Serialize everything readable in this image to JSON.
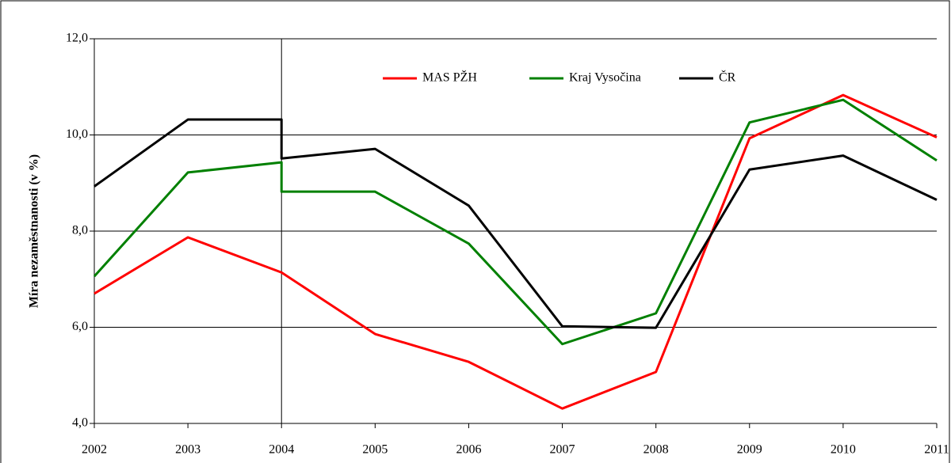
{
  "chart_data": {
    "type": "line",
    "y_label": "Míra nezaměstnanosti (v %)",
    "x": [
      2002,
      2003,
      2004,
      2004,
      2005,
      2006,
      2007,
      2008,
      2009,
      2010,
      2011
    ],
    "series": [
      {
        "name": "MAS PŽH",
        "color": "#ff0000",
        "values": [
          6.7,
          7.87,
          7.14,
          7.14,
          5.86,
          5.28,
          4.31,
          5.07,
          9.93,
          10.83,
          9.95
        ]
      },
      {
        "name": "Kraj Vysočina",
        "color": "#008000",
        "values": [
          7.06,
          9.22,
          9.43,
          8.82,
          8.82,
          7.74,
          5.65,
          6.29,
          10.26,
          10.73,
          9.47
        ]
      },
      {
        "name": "ČR",
        "color": "#000000",
        "values": [
          8.93,
          10.32,
          10.32,
          9.51,
          9.71,
          8.53,
          6.02,
          5.99,
          9.28,
          9.57,
          8.65
        ]
      }
    ],
    "xlim": [
      2002,
      2011
    ],
    "xticks": [
      2002,
      2003,
      2004,
      2005,
      2006,
      2007,
      2008,
      2009,
      2010,
      2011
    ],
    "ylim": [
      4,
      12
    ],
    "yticks": [
      {
        "value": 4,
        "label": "4,0"
      },
      {
        "value": 6,
        "label": "6,0"
      },
      {
        "value": 8,
        "label": "8,0"
      },
      {
        "value": 10,
        "label": "10,0"
      },
      {
        "value": 12,
        "label": "12,0"
      }
    ],
    "xline": 2004,
    "grid": true,
    "legend": "top"
  }
}
